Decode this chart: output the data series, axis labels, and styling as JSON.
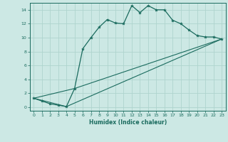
{
  "xlabel": "Humidex (Indice chaleur)",
  "ylabel": "",
  "bg_color": "#cce8e4",
  "line_color": "#1a6b5e",
  "grid_color": "#afd4ce",
  "xlim": [
    -0.5,
    23.5
  ],
  "ylim": [
    -0.5,
    15.0
  ],
  "xticks": [
    0,
    1,
    2,
    3,
    4,
    5,
    6,
    7,
    8,
    9,
    10,
    11,
    12,
    13,
    14,
    15,
    16,
    17,
    18,
    19,
    20,
    21,
    22,
    23
  ],
  "yticks": [
    0,
    2,
    4,
    6,
    8,
    10,
    12,
    14
  ],
  "series": [
    {
      "x": [
        0,
        1,
        2,
        3,
        4,
        5,
        6,
        7,
        8,
        9,
        10,
        11,
        12,
        13,
        14,
        15,
        16,
        17,
        18,
        19,
        20,
        21,
        22,
        23
      ],
      "y": [
        1.3,
        0.9,
        0.5,
        0.3,
        0.1,
        2.7,
        8.4,
        10.0,
        11.5,
        12.6,
        12.1,
        12.0,
        14.6,
        13.6,
        14.6,
        14.0,
        14.0,
        12.5,
        12.0,
        11.1,
        10.3,
        10.1,
        10.1,
        9.8
      ]
    },
    {
      "x": [
        0,
        4,
        23
      ],
      "y": [
        1.3,
        0.1,
        9.8
      ]
    },
    {
      "x": [
        0,
        5,
        23
      ],
      "y": [
        1.3,
        2.7,
        9.8
      ]
    }
  ]
}
